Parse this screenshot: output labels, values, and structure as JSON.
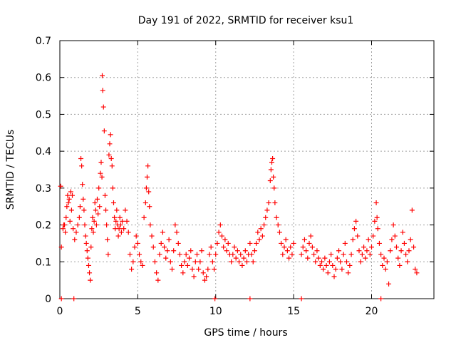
{
  "chart_data": {
    "type": "scatter",
    "title": "Day 191 of 2022, SRMTID for receiver ksu1",
    "xlabel": "GPS time / hours",
    "ylabel": "SRMTID / TECUs",
    "xlim": [
      0,
      24
    ],
    "ylim": [
      0,
      0.7
    ],
    "xticks": [
      0,
      5,
      10,
      15,
      20
    ],
    "yticks": [
      0,
      0.1,
      0.2,
      0.3,
      0.4,
      0.5,
      0.6,
      0.7
    ],
    "grid": true,
    "legend": "none",
    "marker": "+",
    "series_color": "#ff0000",
    "series": [
      {
        "name": "SRMTID",
        "points": [
          [
            0.05,
            0.305
          ],
          [
            0.1,
            0.14
          ],
          [
            0.2,
            0.19
          ],
          [
            0.25,
            0.2
          ],
          [
            0.3,
            0.2
          ],
          [
            0.35,
            0.18
          ],
          [
            0.4,
            0.22
          ],
          [
            0.45,
            0.25
          ],
          [
            0.5,
            0.28
          ],
          [
            0.55,
            0.26
          ],
          [
            0.6,
            0.27
          ],
          [
            0.65,
            0.21
          ],
          [
            0.7,
            0.29
          ],
          [
            0.75,
            0.24
          ],
          [
            0.8,
            0.28
          ],
          [
            0.85,
            0.19
          ],
          [
            0.95,
            0.16
          ],
          [
            1.05,
            0.18
          ],
          [
            1.15,
            0.2
          ],
          [
            1.25,
            0.22
          ],
          [
            1.3,
            0.25
          ],
          [
            1.35,
            0.38
          ],
          [
            1.4,
            0.36
          ],
          [
            1.45,
            0.31
          ],
          [
            1.5,
            0.27
          ],
          [
            1.55,
            0.24
          ],
          [
            1.6,
            0.2
          ],
          [
            1.65,
            0.17
          ],
          [
            1.7,
            0.15
          ],
          [
            1.75,
            0.13
          ],
          [
            1.8,
            0.11
          ],
          [
            1.85,
            0.09
          ],
          [
            1.9,
            0.07
          ],
          [
            1.95,
            0.05
          ],
          [
            2.0,
            0.14
          ],
          [
            2.05,
            0.19
          ],
          [
            2.1,
            0.22
          ],
          [
            2.15,
            0.18
          ],
          [
            2.2,
            0.21
          ],
          [
            2.25,
            0.26
          ],
          [
            2.3,
            0.24
          ],
          [
            2.35,
            0.2
          ],
          [
            2.4,
            0.27
          ],
          [
            2.45,
            0.23
          ],
          [
            2.5,
            0.3
          ],
          [
            2.55,
            0.25
          ],
          [
            2.6,
            0.34
          ],
          [
            2.65,
            0.37
          ],
          [
            2.7,
            0.33
          ],
          [
            2.72,
            0.605
          ],
          [
            2.75,
            0.565
          ],
          [
            2.8,
            0.52
          ],
          [
            2.85,
            0.455
          ],
          [
            2.9,
            0.28
          ],
          [
            2.95,
            0.24
          ],
          [
            3.0,
            0.2
          ],
          [
            3.05,
            0.16
          ],
          [
            3.1,
            0.12
          ],
          [
            3.15,
            0.39
          ],
          [
            3.2,
            0.42
          ],
          [
            3.25,
            0.445
          ],
          [
            3.3,
            0.38
          ],
          [
            3.35,
            0.36
          ],
          [
            3.4,
            0.3
          ],
          [
            3.45,
            0.26
          ],
          [
            3.5,
            0.22
          ],
          [
            3.55,
            0.19
          ],
          [
            3.6,
            0.21
          ],
          [
            3.65,
            0.24
          ],
          [
            3.7,
            0.2
          ],
          [
            3.75,
            0.17
          ],
          [
            3.8,
            0.19
          ],
          [
            3.85,
            0.22
          ],
          [
            3.9,
            0.2
          ],
          [
            3.95,
            0.18
          ],
          [
            4.0,
            0.21
          ],
          [
            4.1,
            0.19
          ],
          [
            4.2,
            0.24
          ],
          [
            4.3,
            0.21
          ],
          [
            4.4,
            0.18
          ],
          [
            4.5,
            0.12
          ],
          [
            4.6,
            0.08
          ],
          [
            4.7,
            0.1
          ],
          [
            4.8,
            0.14
          ],
          [
            4.9,
            0.17
          ],
          [
            5.0,
            0.15
          ],
          [
            5.1,
            0.12
          ],
          [
            5.2,
            0.1
          ],
          [
            5.3,
            0.09
          ],
          [
            5.4,
            0.22
          ],
          [
            5.5,
            0.26
          ],
          [
            5.55,
            0.3
          ],
          [
            5.6,
            0.33
          ],
          [
            5.65,
            0.36
          ],
          [
            5.7,
            0.29
          ],
          [
            5.75,
            0.25
          ],
          [
            5.8,
            0.2
          ],
          [
            5.9,
            0.17
          ],
          [
            6.0,
            0.14
          ],
          [
            6.1,
            0.1
          ],
          [
            6.2,
            0.07
          ],
          [
            6.3,
            0.05
          ],
          [
            6.4,
            0.12
          ],
          [
            6.5,
            0.15
          ],
          [
            6.6,
            0.18
          ],
          [
            6.7,
            0.14
          ],
          [
            6.8,
            0.11
          ],
          [
            6.9,
            0.13
          ],
          [
            7.0,
            0.16
          ],
          [
            7.1,
            0.1
          ],
          [
            7.2,
            0.08
          ],
          [
            7.3,
            0.13
          ],
          [
            7.4,
            0.2
          ],
          [
            7.5,
            0.18
          ],
          [
            7.6,
            0.15
          ],
          [
            7.7,
            0.12
          ],
          [
            7.8,
            0.09
          ],
          [
            7.9,
            0.07
          ],
          [
            8.0,
            0.1
          ],
          [
            8.1,
            0.12
          ],
          [
            8.2,
            0.09
          ],
          [
            8.3,
            0.11
          ],
          [
            8.4,
            0.13
          ],
          [
            8.5,
            0.08
          ],
          [
            8.6,
            0.06
          ],
          [
            8.7,
            0.1
          ],
          [
            8.8,
            0.12
          ],
          [
            8.9,
            0.08
          ],
          [
            9.0,
            0.1
          ],
          [
            9.1,
            0.13
          ],
          [
            9.2,
            0.07
          ],
          [
            9.3,
            0.05
          ],
          [
            9.4,
            0.06
          ],
          [
            9.5,
            0.08
          ],
          [
            9.6,
            0.12
          ],
          [
            9.7,
            0.14
          ],
          [
            9.8,
            0.1
          ],
          [
            9.9,
            0.08
          ],
          [
            10.0,
            0.12
          ],
          [
            10.1,
            0.15
          ],
          [
            10.2,
            0.18
          ],
          [
            10.3,
            0.2
          ],
          [
            10.4,
            0.17
          ],
          [
            10.5,
            0.14
          ],
          [
            10.6,
            0.16
          ],
          [
            10.7,
            0.13
          ],
          [
            10.8,
            0.15
          ],
          [
            10.9,
            0.12
          ],
          [
            11.0,
            0.1
          ],
          [
            11.1,
            0.12
          ],
          [
            11.2,
            0.14
          ],
          [
            11.3,
            0.11
          ],
          [
            11.4,
            0.13
          ],
          [
            11.5,
            0.1
          ],
          [
            11.6,
            0.12
          ],
          [
            11.7,
            0.09
          ],
          [
            11.8,
            0.11
          ],
          [
            11.9,
            0.13
          ],
          [
            12.0,
            0.1
          ],
          [
            12.1,
            0.12
          ],
          [
            12.2,
            0.15
          ],
          [
            12.3,
            0.12
          ],
          [
            12.4,
            0.1
          ],
          [
            12.5,
            0.13
          ],
          [
            12.6,
            0.15
          ],
          [
            12.7,
            0.18
          ],
          [
            12.8,
            0.16
          ],
          [
            12.9,
            0.19
          ],
          [
            13.0,
            0.17
          ],
          [
            13.1,
            0.2
          ],
          [
            13.2,
            0.22
          ],
          [
            13.3,
            0.24
          ],
          [
            13.4,
            0.26
          ],
          [
            13.5,
            0.32
          ],
          [
            13.55,
            0.35
          ],
          [
            13.6,
            0.37
          ],
          [
            13.65,
            0.38
          ],
          [
            13.7,
            0.33
          ],
          [
            13.75,
            0.3
          ],
          [
            13.8,
            0.26
          ],
          [
            13.9,
            0.22
          ],
          [
            14.0,
            0.2
          ],
          [
            14.1,
            0.18
          ],
          [
            14.2,
            0.15
          ],
          [
            14.3,
            0.12
          ],
          [
            14.4,
            0.14
          ],
          [
            14.5,
            0.16
          ],
          [
            14.6,
            0.13
          ],
          [
            14.7,
            0.11
          ],
          [
            14.8,
            0.14
          ],
          [
            14.9,
            0.12
          ],
          [
            15.0,
            0.15
          ],
          [
            15.5,
            0.12
          ],
          [
            15.6,
            0.14
          ],
          [
            15.7,
            0.16
          ],
          [
            15.8,
            0.13
          ],
          [
            15.9,
            0.11
          ],
          [
            16.0,
            0.15
          ],
          [
            16.1,
            0.17
          ],
          [
            16.2,
            0.14
          ],
          [
            16.3,
            0.12
          ],
          [
            16.4,
            0.1
          ],
          [
            16.5,
            0.13
          ],
          [
            16.6,
            0.11
          ],
          [
            16.7,
            0.09
          ],
          [
            16.8,
            0.1
          ],
          [
            16.9,
            0.08
          ],
          [
            17.0,
            0.11
          ],
          [
            17.1,
            0.09
          ],
          [
            17.2,
            0.07
          ],
          [
            17.3,
            0.1
          ],
          [
            17.4,
            0.12
          ],
          [
            17.5,
            0.09
          ],
          [
            17.6,
            0.06
          ],
          [
            17.7,
            0.08
          ],
          [
            17.8,
            0.11
          ],
          [
            17.9,
            0.13
          ],
          [
            18.0,
            0.1
          ],
          [
            18.1,
            0.08
          ],
          [
            18.2,
            0.12
          ],
          [
            18.3,
            0.15
          ],
          [
            18.4,
            0.1
          ],
          [
            18.5,
            0.07
          ],
          [
            18.6,
            0.09
          ],
          [
            18.7,
            0.12
          ],
          [
            18.8,
            0.16
          ],
          [
            18.9,
            0.19
          ],
          [
            19.0,
            0.21
          ],
          [
            19.1,
            0.17
          ],
          [
            19.2,
            0.13
          ],
          [
            19.3,
            0.1
          ],
          [
            19.4,
            0.12
          ],
          [
            19.5,
            0.14
          ],
          [
            19.6,
            0.11
          ],
          [
            19.7,
            0.13
          ],
          [
            19.8,
            0.16
          ],
          [
            19.9,
            0.12
          ],
          [
            20.0,
            0.14
          ],
          [
            20.1,
            0.17
          ],
          [
            20.2,
            0.21
          ],
          [
            20.3,
            0.26
          ],
          [
            20.35,
            0.22
          ],
          [
            20.4,
            0.19
          ],
          [
            20.5,
            0.15
          ],
          [
            20.6,
            0.12
          ],
          [
            20.7,
            0.09
          ],
          [
            20.8,
            0.11
          ],
          [
            20.9,
            0.08
          ],
          [
            21.0,
            0.1
          ],
          [
            21.1,
            0.04
          ],
          [
            21.2,
            0.13
          ],
          [
            21.3,
            0.16
          ],
          [
            21.4,
            0.2
          ],
          [
            21.5,
            0.17
          ],
          [
            21.6,
            0.14
          ],
          [
            21.7,
            0.11
          ],
          [
            21.8,
            0.09
          ],
          [
            21.9,
            0.13
          ],
          [
            22.0,
            0.18
          ],
          [
            22.1,
            0.15
          ],
          [
            22.2,
            0.12
          ],
          [
            22.3,
            0.1
          ],
          [
            22.4,
            0.13
          ],
          [
            22.5,
            0.16
          ],
          [
            22.6,
            0.24
          ],
          [
            22.7,
            0.14
          ],
          [
            22.8,
            0.08
          ],
          [
            22.9,
            0.07
          ],
          [
            0.1,
            0.0
          ],
          [
            0.9,
            0.0
          ],
          [
            9.95,
            0.0
          ],
          [
            12.2,
            0.0
          ],
          [
            15.5,
            0.0
          ],
          [
            20.6,
            0.0
          ]
        ]
      }
    ]
  }
}
